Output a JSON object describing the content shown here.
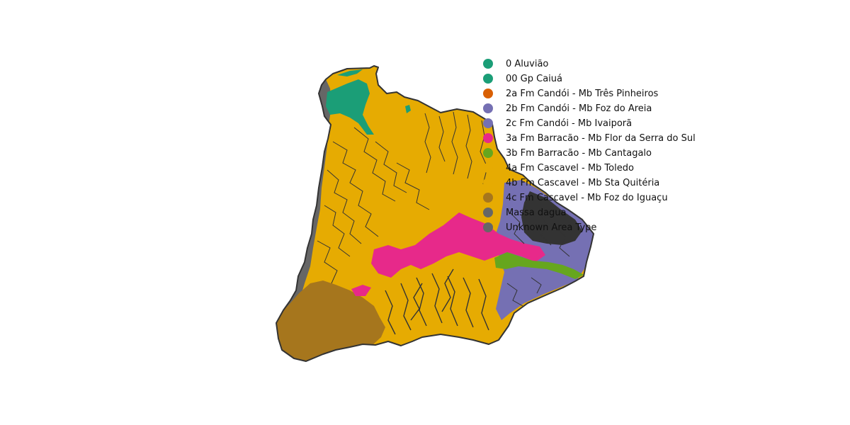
{
  "map": {
    "colors": {
      "aluviao": "#1b9e77",
      "mbtoledo": "#e6ab02",
      "mbfozareia": "#7570b3",
      "mbflor": "#e7298a",
      "mbcantagalo": "#66a61e",
      "mbfozdoiguacu": "#a6761d",
      "massa": "#666666",
      "outline": "#333333"
    },
    "legend": [
      {
        "label": "0 Aluvião",
        "color": "#1b9e77"
      },
      {
        "label": "00 Gp Caiuá",
        "color": "#1b9e77"
      },
      {
        "label": "2a Fm Candói - Mb Três Pinheiros",
        "color": "#d95f02"
      },
      {
        "label": "2b Fm Candói - Mb Foz do Areia",
        "color": "#7570b3"
      },
      {
        "label": "2c Fm Candói - Mb Ivaiporã",
        "color": "#7570b3"
      },
      {
        "label": "3a Fm Barracão - Mb Flor da Serra do Sul",
        "color": "#e7298a"
      },
      {
        "label": "3b Fm Barracão - Mb Cantagalo",
        "color": "#66a61e"
      },
      {
        "label": "4a Fm Cascavel - Mb Toledo",
        "color": "#e6ab02"
      },
      {
        "label": "4b Fm Cascavel - Mb Sta Quitéria",
        "color": "#e6ab02"
      },
      {
        "label": "4c Fm Cascavel - Mb Foz do Iguaçu",
        "color": "#a6761d"
      },
      {
        "label": "Massa dagua",
        "color": "#666666"
      },
      {
        "label": "Unknown Area Type",
        "color": "#666666"
      }
    ]
  }
}
